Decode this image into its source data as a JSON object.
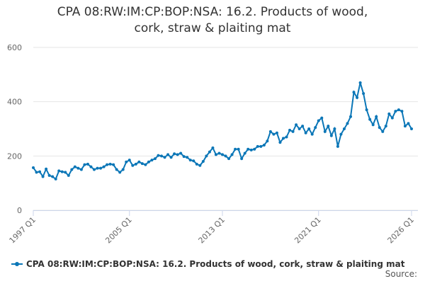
{
  "chart_data": {
    "type": "line",
    "title": "CPA 08:RW:IM:CP:BOP:NSA: 16.2. Products of wood, cork, straw & plaiting mat",
    "source": "Source:",
    "categories": [
      "1997 Q1",
      null,
      null,
      null,
      null,
      null,
      null,
      null,
      null,
      null,
      null,
      null,
      null,
      null,
      null,
      null,
      null,
      null,
      null,
      null,
      null,
      null,
      null,
      null,
      null,
      null,
      null,
      null,
      null,
      null,
      "2005 Q1",
      null,
      null,
      null,
      null,
      null,
      null,
      null,
      null,
      null,
      null,
      null,
      null,
      null,
      null,
      null,
      null,
      null,
      null,
      null,
      null,
      null,
      null,
      null,
      null,
      null,
      null,
      null,
      null,
      "2013 Q1",
      null,
      null,
      null,
      null,
      null,
      null,
      null,
      null,
      null,
      null,
      null,
      null,
      null,
      null,
      null,
      null,
      null,
      null,
      null,
      null,
      null,
      null,
      null,
      null,
      null,
      null,
      null,
      null,
      null,
      "2021 Q1",
      null,
      null,
      null,
      null,
      null,
      null,
      null,
      null,
      null,
      null,
      null,
      null,
      null,
      null,
      null,
      null,
      null,
      null,
      null,
      null,
      null,
      null,
      null,
      null,
      null,
      null,
      null,
      null,
      "2026 Q1"
    ],
    "series": [
      {
        "name": "CPA 08:RW:IM:CP:BOP:NSA: 16.2. Products of wood, cork, straw & plaiting mat",
        "color": "#0a76b7",
        "values": [
          157,
          140,
          142,
          124,
          152,
          128,
          124,
          115,
          145,
          142,
          140,
          128,
          150,
          160,
          155,
          150,
          168,
          170,
          160,
          150,
          155,
          155,
          160,
          168,
          170,
          168,
          150,
          140,
          150,
          178,
          185,
          165,
          170,
          178,
          172,
          168,
          178,
          185,
          190,
          202,
          200,
          195,
          205,
          195,
          208,
          205,
          210,
          198,
          195,
          185,
          182,
          170,
          165,
          180,
          200,
          215,
          230,
          205,
          210,
          205,
          200,
          190,
          205,
          225,
          225,
          190,
          210,
          225,
          222,
          225,
          235,
          235,
          240,
          255,
          290,
          280,
          285,
          250,
          265,
          270,
          295,
          290,
          315,
          300,
          310,
          285,
          300,
          280,
          305,
          330,
          340,
          290,
          310,
          275,
          300,
          235,
          280,
          300,
          320,
          345,
          435,
          415,
          470,
          430,
          370,
          335,
          315,
          345,
          305,
          290,
          310,
          355,
          340,
          365,
          370,
          365,
          310,
          320,
          300
        ]
      }
    ],
    "ylim": [
      0,
      600
    ],
    "yticks": [
      0,
      200,
      400,
      600
    ],
    "grid": true
  }
}
